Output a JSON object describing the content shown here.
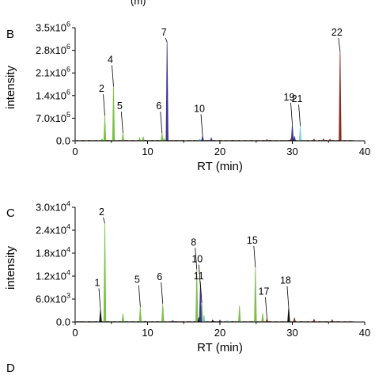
{
  "figure": {
    "top_fragment": "(m)",
    "panels": [
      "B",
      "C",
      "D"
    ]
  },
  "chart_data": [
    {
      "type": "line",
      "panel": "B",
      "xlabel": "RT (min)",
      "ylabel": "intensity",
      "xlim": [
        0,
        40
      ],
      "ylim": [
        0,
        3500000
      ],
      "x_ticks": [
        0,
        10,
        20,
        30,
        40
      ],
      "x_tick_labels": [
        "0",
        "10",
        "20",
        "30",
        "40"
      ],
      "y_ticks": [
        0,
        700000,
        1400000,
        2100000,
        2800000,
        3500000
      ],
      "y_tick_labels": [
        {
          "base": "0.0",
          "exp": ""
        },
        {
          "base": "7.0x10",
          "exp": "5"
        },
        {
          "base": "1.4x10",
          "exp": "6"
        },
        {
          "base": "2.1x10",
          "exp": "6"
        },
        {
          "base": "2.8x10",
          "exp": "6"
        },
        {
          "base": "3.5x10",
          "exp": "6"
        }
      ],
      "series": [
        {
          "color": "#7cc04a",
          "peaks": [
            [
              3.7,
              60000
            ],
            [
              4.1,
              780000
            ],
            [
              5.3,
              1680000
            ],
            [
              6.6,
              240000
            ],
            [
              8.9,
              90000
            ],
            [
              9.4,
              130000
            ],
            [
              12.0,
              240000
            ],
            [
              12.3,
              70000
            ]
          ]
        },
        {
          "color": "#3d3594",
          "peaks": [
            [
              12.7,
              3050000
            ],
            [
              17.6,
              160000
            ],
            [
              18.8,
              90000
            ],
            [
              30.0,
              520000
            ],
            [
              30.3,
              140000
            ]
          ]
        },
        {
          "color": "#86cfd3",
          "peaks": [
            [
              31.1,
              460000
            ],
            [
              17.2,
              60000
            ]
          ]
        },
        {
          "color": "#8b2a1e",
          "peaks": [
            [
              36.6,
              2760000
            ],
            [
              29.8,
              60000
            ],
            [
              33.0,
              50000
            ],
            [
              34.3,
              60000
            ],
            [
              35.2,
              50000
            ],
            [
              26.5,
              40000
            ]
          ]
        }
      ],
      "annotations": [
        {
          "label": "2",
          "x": 4.1,
          "y": 780000
        },
        {
          "label": "4",
          "x": 5.3,
          "y": 1680000
        },
        {
          "label": "5",
          "x": 6.6,
          "y": 240000
        },
        {
          "label": "6",
          "x": 12.0,
          "y": 240000
        },
        {
          "label": "7",
          "x": 12.7,
          "y": 3050000
        },
        {
          "label": "10",
          "x": 17.6,
          "y": 160000
        },
        {
          "label": "19",
          "x": 30.0,
          "y": 520000
        },
        {
          "label": "21",
          "x": 31.1,
          "y": 460000
        },
        {
          "label": "22",
          "x": 36.6,
          "y": 2760000
        }
      ]
    },
    {
      "type": "line",
      "panel": "C",
      "xlabel": "RT (min)",
      "ylabel": "intensity",
      "xlim": [
        0,
        40
      ],
      "ylim": [
        0,
        30000
      ],
      "x_ticks": [
        0,
        10,
        20,
        30,
        40
      ],
      "x_tick_labels": [
        "0",
        "10",
        "20",
        "30",
        "40"
      ],
      "y_ticks": [
        0,
        6000,
        12000,
        18000,
        24000,
        30000
      ],
      "y_tick_labels": [
        {
          "base": "0.0",
          "exp": ""
        },
        {
          "base": "6.0x10",
          "exp": "3"
        },
        {
          "base": "1.2x10",
          "exp": "4"
        },
        {
          "base": "1.8x10",
          "exp": "4"
        },
        {
          "base": "2.4x10",
          "exp": "4"
        },
        {
          "base": "3.0x10",
          "exp": "4"
        }
      ],
      "series": [
        {
          "color": "#7cc04a",
          "peaks": [
            [
              4.1,
              25800
            ],
            [
              6.6,
              2200
            ],
            [
              9.0,
              4000
            ],
            [
              12.1,
              4800
            ],
            [
              16.8,
              13800
            ],
            [
              17.5,
              5000
            ],
            [
              22.7,
              4200
            ],
            [
              24.9,
              14300
            ],
            [
              25.9,
              2300
            ]
          ]
        },
        {
          "color": "#111111",
          "peaks": [
            [
              3.5,
              3200
            ],
            [
              17.1,
              1200
            ],
            [
              29.5,
              3800
            ],
            [
              19.0,
              500
            ]
          ]
        },
        {
          "color": "#3d3594",
          "peaks": [
            [
              17.3,
              9400
            ],
            [
              20.0,
              500
            ],
            [
              13.5,
              400
            ]
          ]
        },
        {
          "color": "#86cfd3",
          "peaks": [
            [
              17.8,
              1800
            ],
            [
              21.0,
              400
            ]
          ]
        },
        {
          "color": "#8b2a1e",
          "peaks": [
            [
              26.5,
              900
            ],
            [
              30.3,
              1100
            ],
            [
              33.0,
              700
            ],
            [
              35.5,
              600
            ]
          ]
        }
      ],
      "annotations": [
        {
          "label": "1",
          "x": 3.5,
          "y": 3200
        },
        {
          "label": "2",
          "x": 4.1,
          "y": 25800
        },
        {
          "label": "5",
          "x": 9.0,
          "y": 4000
        },
        {
          "label": "6",
          "x": 12.1,
          "y": 4800
        },
        {
          "label": "8",
          "x": 16.8,
          "y": 13800
        },
        {
          "label": "10",
          "x": 17.3,
          "y": 9400
        },
        {
          "label": "11",
          "x": 17.5,
          "y": 5000
        },
        {
          "label": "15",
          "x": 24.9,
          "y": 14300
        },
        {
          "label": "17",
          "x": 26.5,
          "y": 900
        },
        {
          "label": "18",
          "x": 29.5,
          "y": 3800
        }
      ]
    }
  ]
}
